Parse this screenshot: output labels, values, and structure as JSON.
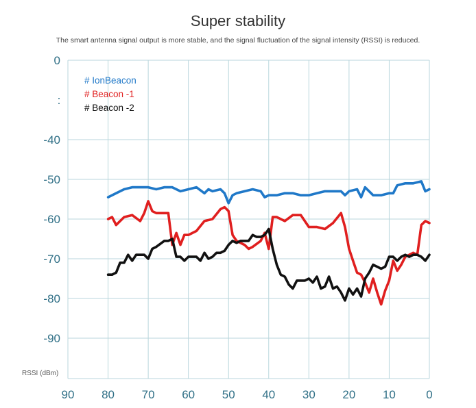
{
  "chart_data": {
    "type": "line",
    "title": "Super stability",
    "subtitle": "The smart antenna signal output is more stable, and the signal fluctuation of the signal intensity (RSSI) is reduced.",
    "ylabel": "RSSI (dBm)",
    "xlabel": "",
    "xlim": [
      90,
      0
    ],
    "ylim": [
      0,
      -100
    ],
    "x_ticks": [
      "90",
      "80",
      "70",
      "60",
      "50",
      "40",
      "30",
      "20",
      "10",
      "0"
    ],
    "x_tick_values": [
      90,
      80,
      70,
      60,
      50,
      40,
      30,
      20,
      10,
      0
    ],
    "y_ticks": [
      "0",
      "-40",
      "-50",
      "-60",
      "-70",
      "-80",
      "-90"
    ],
    "y_tick_values": [
      0,
      -40,
      -50,
      -60,
      -70,
      -80,
      -90
    ],
    "y_break_label": ":",
    "grid": true,
    "legend_position": "top-left",
    "series": [
      {
        "name": "# IonBeacon",
        "color": "#1f78c8",
        "x": [
          80,
          78,
          76,
          74,
          72,
          70,
          68,
          66,
          64,
          62,
          60,
          58,
          56,
          55,
          54,
          52,
          51,
          50,
          49,
          48,
          46,
          44,
          42,
          41,
          40,
          38,
          36,
          34,
          32,
          30,
          28,
          26,
          24,
          22,
          21,
          20,
          18,
          17,
          16,
          14,
          12,
          10,
          9,
          8,
          6,
          5,
          4,
          2,
          1,
          0
        ],
        "y": [
          -54.5,
          -53.5,
          -52.5,
          -52,
          -52,
          -52,
          -52.5,
          -52,
          -52,
          -53,
          -52.5,
          -52,
          -53.5,
          -52.5,
          -53,
          -52.5,
          -53.5,
          -56,
          -54,
          -53.5,
          -53,
          -52.5,
          -53,
          -54.5,
          -54,
          -54,
          -53.5,
          -53.5,
          -54,
          -54,
          -53.5,
          -53,
          -53,
          -53,
          -54,
          -53,
          -52.5,
          -54.5,
          -52,
          -54,
          -54,
          -53.5,
          -53.5,
          -51.5,
          -51,
          -51,
          -51,
          -50.5,
          -53,
          -52.5
        ]
      },
      {
        "name": "# Beacon -1",
        "color": "#e01f1f",
        "x": [
          80,
          79,
          78,
          76,
          74,
          72,
          71,
          70,
          69,
          68,
          66,
          65,
          64,
          63,
          62,
          61,
          60,
          58,
          56,
          54,
          52,
          51,
          50,
          49,
          48,
          46,
          45,
          44,
          42,
          41,
          40,
          39,
          38,
          36,
          34,
          33,
          32,
          30,
          28,
          26,
          24,
          22,
          21,
          20,
          19,
          18,
          17,
          16,
          15,
          14,
          13,
          12,
          11,
          10,
          9,
          8,
          7,
          6,
          5,
          4,
          3,
          2,
          1,
          0
        ],
        "y": [
          -60,
          -59.5,
          -61.5,
          -59.5,
          -59,
          -60.5,
          -58.5,
          -55.5,
          -58,
          -58.5,
          -58.5,
          -58.5,
          -66.5,
          -63.5,
          -66.5,
          -64,
          -64,
          -63,
          -60.5,
          -60,
          -57.5,
          -57,
          -58,
          -64,
          -65.5,
          -66.5,
          -67.5,
          -67,
          -65.5,
          -63.5,
          -67.5,
          -59.5,
          -59.5,
          -60.5,
          -59,
          -59,
          -59,
          -62,
          -62,
          -62.5,
          -61,
          -58.5,
          -62,
          -67.5,
          -70.5,
          -73.5,
          -74,
          -76,
          -78.5,
          -75,
          -78.5,
          -81.5,
          -78,
          -75.5,
          -70.5,
          -73,
          -71.5,
          -69.5,
          -69,
          -68.5,
          -69,
          -61.5,
          -60.5,
          -61
        ]
      },
      {
        "name": "# Beacon -2",
        "color": "#111111",
        "x": [
          80,
          79,
          78,
          77,
          76,
          75,
          74,
          73,
          72,
          71,
          70,
          69,
          68,
          66,
          65,
          64,
          63,
          62,
          61,
          60,
          58,
          57,
          56,
          55,
          54,
          53,
          52,
          51,
          50,
          49,
          48,
          47,
          46,
          45,
          44,
          43,
          42,
          41,
          40,
          39,
          38,
          37,
          36,
          35,
          34,
          33,
          32,
          31,
          30,
          29,
          28,
          27,
          26,
          25,
          24,
          23,
          22,
          21,
          20,
          19,
          18,
          17,
          16,
          15,
          14,
          13,
          12,
          11,
          10,
          9,
          8,
          7,
          6,
          5,
          4,
          3,
          2,
          1,
          0
        ],
        "y": [
          -74,
          -74,
          -73.5,
          -71,
          -71,
          -69,
          -70.5,
          -69,
          -69,
          -69,
          -70,
          -67.5,
          -67,
          -65.5,
          -65.5,
          -65,
          -69.5,
          -69.5,
          -70.5,
          -69.5,
          -69.5,
          -70.5,
          -68.5,
          -70,
          -69.5,
          -68.5,
          -68.5,
          -68,
          -66.5,
          -65.5,
          -66,
          -65.5,
          -65.5,
          -65.5,
          -64,
          -64.5,
          -64.5,
          -64,
          -62.5,
          -67.5,
          -71.5,
          -74,
          -74.5,
          -76.5,
          -77.5,
          -75.5,
          -75.5,
          -75.5,
          -75,
          -76,
          -74.5,
          -77.5,
          -77,
          -74.5,
          -77.5,
          -77,
          -78.5,
          -80.5,
          -77.5,
          -79,
          -77.5,
          -79.5,
          -75,
          -73.5,
          -71.5,
          -72,
          -72.5,
          -72,
          -69.5,
          -69.5,
          -70.5,
          -69.5,
          -69,
          -69.5,
          -69,
          -69,
          -69.5,
          -70.5,
          -69
        ]
      }
    ]
  }
}
